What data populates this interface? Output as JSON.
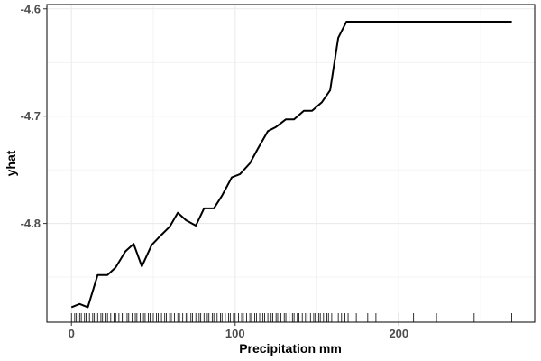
{
  "chart_data": {
    "type": "line",
    "title": "",
    "xlabel": "Precipitation mm",
    "ylabel": "yhat",
    "xlim": [
      -15,
      283
    ],
    "ylim": [
      -4.892,
      -4.596
    ],
    "x_ticks": [
      0,
      100,
      200
    ],
    "x_minor_ticks": [
      50,
      150,
      250
    ],
    "y_ticks": [
      -4.6,
      -4.7,
      -4.8
    ],
    "y_minor_ticks": [
      -4.65,
      -4.75,
      -4.85
    ],
    "x_tick_labels": [
      "0",
      "100",
      "200"
    ],
    "y_tick_labels": [
      "-4.6",
      "-4.7",
      "-4.8"
    ],
    "grid": true,
    "legend": "none",
    "colors": {
      "line": "#000000",
      "grid": "#ebebeb",
      "panel_border": "#000000",
      "rug": "#000000"
    },
    "series": [
      {
        "x": [
          0,
          5,
          10,
          16,
          22,
          27,
          33,
          38,
          43,
          49,
          54,
          60,
          65,
          70,
          76,
          81,
          87,
          92,
          98,
          103,
          109,
          114,
          120,
          125,
          131,
          136,
          142,
          147,
          153,
          158,
          163,
          168,
          174,
          186,
          269
        ],
        "y": [
          -4.878,
          -4.875,
          -4.878,
          -4.848,
          -4.848,
          -4.841,
          -4.826,
          -4.819,
          -4.84,
          -4.82,
          -4.812,
          -4.803,
          -4.79,
          -4.797,
          -4.802,
          -4.786,
          -4.786,
          -4.774,
          -4.757,
          -4.754,
          -4.744,
          -4.73,
          -4.714,
          -4.71,
          -4.703,
          -4.703,
          -4.695,
          -4.695,
          -4.687,
          -4.676,
          -4.627,
          -4.612,
          -4.612,
          -4.612,
          -4.612
        ]
      }
    ],
    "rug_x": [
      0,
      2,
      3,
      5,
      6,
      8,
      9,
      11,
      13,
      14,
      16,
      18,
      19,
      21,
      22,
      24,
      26,
      27,
      29,
      31,
      32,
      34,
      35,
      37,
      39,
      40,
      42,
      44,
      45,
      47,
      48,
      50,
      52,
      53,
      55,
      57,
      58,
      60,
      61,
      63,
      65,
      66,
      68,
      70,
      71,
      73,
      74,
      76,
      78,
      79,
      81,
      83,
      84,
      86,
      87,
      89,
      91,
      92,
      94,
      96,
      97,
      99,
      100,
      102,
      104,
      105,
      107,
      109,
      110,
      112,
      113,
      115,
      117,
      118,
      120,
      122,
      123,
      125,
      126,
      128,
      130,
      131,
      133,
      135,
      136,
      138,
      139,
      141,
      143,
      144,
      146,
      148,
      149,
      151,
      152,
      154,
      156,
      157,
      159,
      161,
      163,
      165,
      167,
      169,
      174,
      181,
      186,
      200,
      209,
      223,
      246,
      269
    ]
  }
}
